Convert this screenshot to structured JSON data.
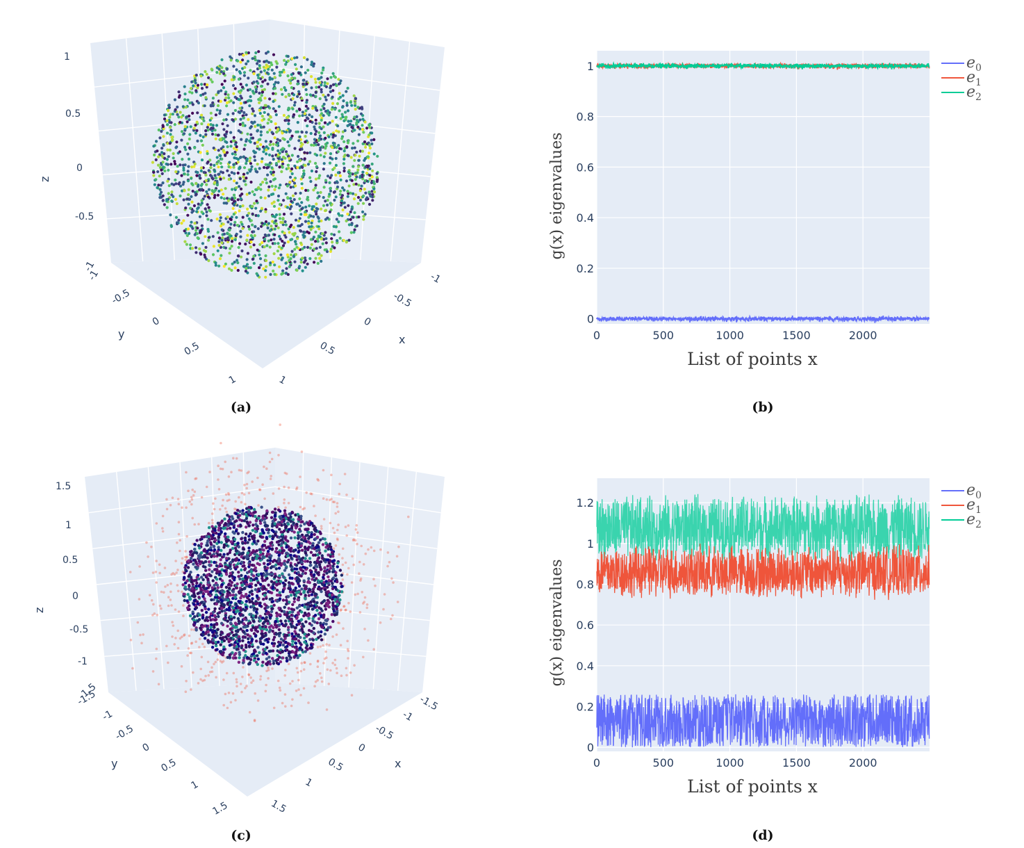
{
  "colors": {
    "e0": "#636efa",
    "e1": "#ef553b",
    "e2": "#00cc96",
    "plot_bg": "#e5ecf6",
    "grid": "#ffffff",
    "outlier": "#ef553b"
  },
  "chart_data": [
    {
      "panel": "a",
      "type": "scatter",
      "subtype": "scatter3d",
      "caption": "(a)",
      "title": "",
      "axis_labels": {
        "x": "x",
        "y": "y",
        "z": "z"
      },
      "x_ticks": [
        "-1",
        "-0.5",
        "0",
        "0.5",
        "1"
      ],
      "y_ticks": [
        "-1",
        "-0.5",
        "0",
        "0.5",
        "1"
      ],
      "z_ticks": [
        "-1",
        "-0.5",
        "0",
        "0.5",
        "1"
      ],
      "xlim": [
        -1,
        1
      ],
      "ylim": [
        -1,
        1
      ],
      "zlim": [
        -1,
        1
      ],
      "points_description": "points on unit sphere, radius 1, viridis colorscale",
      "radius": 1,
      "n_points": 2500,
      "colorscale": "viridis"
    },
    {
      "panel": "b",
      "type": "line",
      "caption": "(b)",
      "title": "",
      "xlabel": "List of points x",
      "ylabel": "g(x) eigenvalues",
      "xlim": [
        0,
        2500
      ],
      "ylim": [
        -0.02,
        1.06
      ],
      "x_ticks": [
        "0",
        "500",
        "1000",
        "1500",
        "2000"
      ],
      "y_ticks": [
        "0",
        "0.2",
        "0.4",
        "0.6",
        "0.8",
        "1"
      ],
      "legend": [
        "e0",
        "e1",
        "e2"
      ],
      "legend_placement": "outside-right-top",
      "series": [
        {
          "name": "e0",
          "mean": 0.0,
          "noise": 0.004,
          "n": 2500
        },
        {
          "name": "e1",
          "mean": 1.0,
          "noise": 0.004,
          "n": 2500
        },
        {
          "name": "e2",
          "mean": 1.0,
          "noise": 0.004,
          "n": 2500
        }
      ]
    },
    {
      "panel": "c",
      "type": "scatter",
      "subtype": "scatter3d",
      "caption": "(c)",
      "title": "",
      "axis_labels": {
        "x": "x",
        "y": "y",
        "z": "z"
      },
      "x_ticks": [
        "-1.5",
        "-1",
        "-0.5",
        "0",
        "0.5",
        "1",
        "1.5"
      ],
      "y_ticks": [
        "-1.5",
        "-1",
        "-0.5",
        "0",
        "0.5",
        "1",
        "1.5"
      ],
      "z_ticks": [
        "-1.5",
        "-1",
        "-0.5",
        "0",
        "0.5",
        "1",
        "1.5"
      ],
      "xlim": [
        -1.5,
        1.5
      ],
      "ylim": [
        -1.5,
        1.5
      ],
      "zlim": [
        -1.5,
        1.5
      ],
      "points_description": "noisy sphere points (dark colors) with scattered outliers (light red)",
      "radius": 1,
      "n_points": 2500,
      "n_outliers": 450,
      "colorscale": "plasma-dark"
    },
    {
      "panel": "d",
      "type": "line",
      "caption": "(d)",
      "title": "",
      "xlabel": "List of points x",
      "ylabel": "g(x) eigenvalues",
      "xlim": [
        0,
        2500
      ],
      "ylim": [
        -0.02,
        1.32
      ],
      "x_ticks": [
        "0",
        "500",
        "1000",
        "1500",
        "2000"
      ],
      "y_ticks": [
        "0",
        "0.2",
        "0.4",
        "0.6",
        "0.8",
        "1",
        "1.2"
      ],
      "legend": [
        "e0",
        "e1",
        "e2"
      ],
      "legend_placement": "outside-right-top",
      "series": [
        {
          "name": "e0",
          "min": 0.0,
          "max": 0.26,
          "n": 2500
        },
        {
          "name": "e1",
          "min": 0.72,
          "max": 1.0,
          "n": 2500
        },
        {
          "name": "e2",
          "min": 0.9,
          "max": 1.25,
          "n": 2500
        }
      ]
    }
  ]
}
